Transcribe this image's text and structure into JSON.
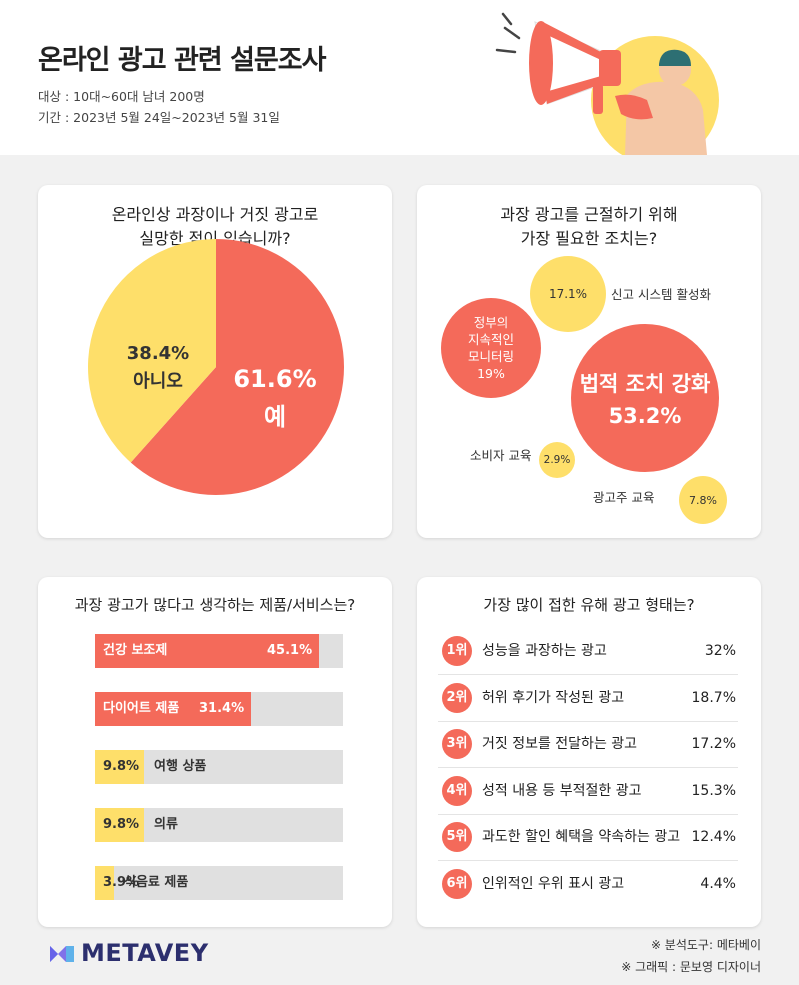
{
  "header": {
    "title": "온라인 광고 관련 설문조사",
    "target": "대상 : 10대~60대 남녀 200명",
    "period": "기간 : 2023년 5월 24일~2023년 5월 31일"
  },
  "chart_data": [
    {
      "type": "pie",
      "title": "온라인상 과장이나 거짓 광고로 실망한 적이 있습니까?",
      "title_lines": [
        "온라인상 과장이나 거짓 광고로",
        "실망한 적이 있습니까?"
      ],
      "slices": [
        {
          "label": "예",
          "value": 61.6,
          "value_label": "61.6%",
          "color": "#f46a5a"
        },
        {
          "label": "아니오",
          "value": 38.4,
          "value_label": "38.4%",
          "color": "#fedf6a"
        }
      ]
    },
    {
      "type": "bubble",
      "title": "과장 광고를 근절하기 위해 가장 필요한 조치는?",
      "title_lines": [
        "과장 광고를 근절하기 위해",
        "가장 필요한 조치는?"
      ],
      "items": [
        {
          "label": "법적 조치 강화",
          "value": 53.2,
          "value_label": "53.2%",
          "color": "#f46a5a"
        },
        {
          "label": "정부의 지속적인 모니터링",
          "label_lines": [
            "정부의",
            "지속적인",
            "모니터링"
          ],
          "value": 19,
          "value_label": "19%",
          "color": "#f46a5a"
        },
        {
          "label": "신고 시스템 활성화",
          "value": 17.1,
          "value_label": "17.1%",
          "color": "#fedf6a"
        },
        {
          "label": "광고주 교육",
          "value": 7.8,
          "value_label": "7.8%",
          "color": "#fedf6a"
        },
        {
          "label": "소비자 교육",
          "value": 2.9,
          "value_label": "2.9%",
          "color": "#fedf6a"
        }
      ]
    },
    {
      "type": "bar",
      "orientation": "horizontal",
      "title": "과장 광고가 많다고 생각하는 제품/서비스는?",
      "xlim": [
        0,
        50
      ],
      "categories": [
        "건강 보조제",
        "다이어트 제품",
        "여행 상품",
        "의류",
        "식음료 제품"
      ],
      "values": [
        45.1,
        31.4,
        9.8,
        9.8,
        3.9
      ],
      "value_labels": [
        "45.1%",
        "31.4%",
        "9.8%",
        "9.8%",
        "3.9%"
      ],
      "colors": [
        "#f46a5a",
        "#f46a5a",
        "#fedf6a",
        "#fedf6a",
        "#fedf6a"
      ]
    },
    {
      "type": "table",
      "title": "가장 많이 접한 유해 광고 형태는?",
      "rows": [
        {
          "rank": "1위",
          "label": "성능을 과장하는 광고",
          "value_label": "32%"
        },
        {
          "rank": "2위",
          "label": "허위 후기가 작성된 광고",
          "value_label": "18.7%"
        },
        {
          "rank": "3위",
          "label": "거짓 정보를 전달하는 광고",
          "value_label": "17.2%"
        },
        {
          "rank": "4위",
          "label": "성적 내용 등 부적절한 광고",
          "value_label": "15.3%"
        },
        {
          "rank": "5위",
          "label": "과도한 할인 혜택을 약속하는 광고",
          "value_label": "12.4%"
        },
        {
          "rank": "6위",
          "label": "인위적인 우위 표시 광고",
          "value_label": "4.4%"
        }
      ]
    }
  ],
  "footer": {
    "logo": "METAVEY",
    "tool": "※ 분석도구: 메타베이",
    "graphic": "※ 그래픽 : 문보영 디자이너"
  },
  "colors": {
    "red": "#f46a5a",
    "yellow": "#fedf6a",
    "track": "#e0e0e0",
    "navy": "#2c2f6e"
  }
}
